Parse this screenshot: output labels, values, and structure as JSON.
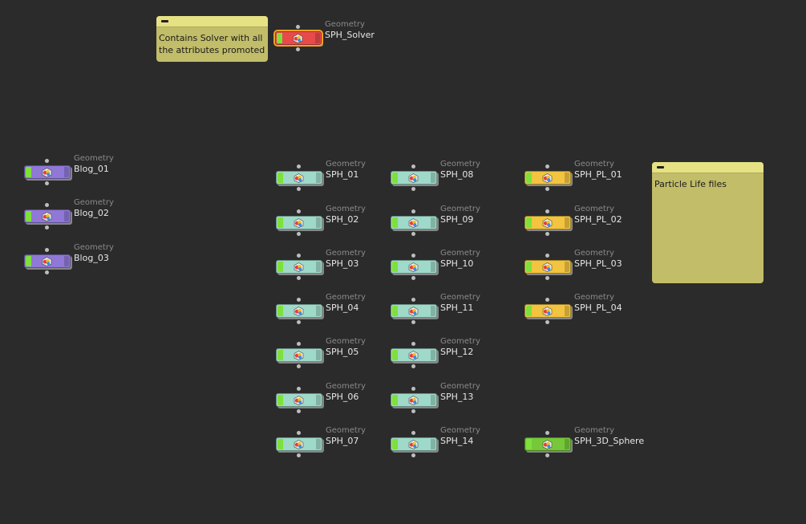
{
  "network": {
    "sticky_notes": [
      {
        "id": "solver-note",
        "text_lines": [
          "Contains Solver with all",
          "the attributes promoted"
        ]
      },
      {
        "id": "particle-life-note",
        "text_lines": [
          "Particle Life files"
        ]
      }
    ],
    "colors": {
      "background": "#2b2b2b",
      "sticky": "#c2bd69",
      "sticky_bar": "#e6e284",
      "purple": "#8f78d6",
      "teal": "#9fd9c9",
      "orange": "#f2c440",
      "red": "#e84a4a",
      "green": "#76c83a",
      "display_flag": "#7ee03a",
      "selection": "#f0a020"
    },
    "nodes": [
      {
        "id": "SPH_Solver",
        "type": "Geometry",
        "name": "SPH_Solver",
        "color": "red",
        "selected": true
      },
      {
        "id": "Blog_01",
        "type": "Geometry",
        "name": "Blog_01",
        "color": "purple"
      },
      {
        "id": "Blog_02",
        "type": "Geometry",
        "name": "Blog_02",
        "color": "purple"
      },
      {
        "id": "Blog_03",
        "type": "Geometry",
        "name": "Blog_03",
        "color": "purple"
      },
      {
        "id": "SPH_01",
        "type": "Geometry",
        "name": "SPH_01",
        "color": "teal"
      },
      {
        "id": "SPH_02",
        "type": "Geometry",
        "name": "SPH_02",
        "color": "teal"
      },
      {
        "id": "SPH_03",
        "type": "Geometry",
        "name": "SPH_03",
        "color": "teal"
      },
      {
        "id": "SPH_04",
        "type": "Geometry",
        "name": "SPH_04",
        "color": "teal"
      },
      {
        "id": "SPH_05",
        "type": "Geometry",
        "name": "SPH_05",
        "color": "teal"
      },
      {
        "id": "SPH_06",
        "type": "Geometry",
        "name": "SPH_06",
        "color": "teal"
      },
      {
        "id": "SPH_07",
        "type": "Geometry",
        "name": "SPH_07",
        "color": "teal"
      },
      {
        "id": "SPH_08",
        "type": "Geometry",
        "name": "SPH_08",
        "color": "teal"
      },
      {
        "id": "SPH_09",
        "type": "Geometry",
        "name": "SPH_09",
        "color": "teal"
      },
      {
        "id": "SPH_10",
        "type": "Geometry",
        "name": "SPH_10",
        "color": "teal"
      },
      {
        "id": "SPH_11",
        "type": "Geometry",
        "name": "SPH_11",
        "color": "teal"
      },
      {
        "id": "SPH_12",
        "type": "Geometry",
        "name": "SPH_12",
        "color": "teal"
      },
      {
        "id": "SPH_13",
        "type": "Geometry",
        "name": "SPH_13",
        "color": "teal"
      },
      {
        "id": "SPH_14",
        "type": "Geometry",
        "name": "SPH_14",
        "color": "teal"
      },
      {
        "id": "SPH_PL_01",
        "type": "Geometry",
        "name": "SPH_PL_01",
        "color": "orange"
      },
      {
        "id": "SPH_PL_02",
        "type": "Geometry",
        "name": "SPH_PL_02",
        "color": "orange"
      },
      {
        "id": "SPH_PL_03",
        "type": "Geometry",
        "name": "SPH_PL_03",
        "color": "orange"
      },
      {
        "id": "SPH_PL_04",
        "type": "Geometry",
        "name": "SPH_PL_04",
        "color": "orange"
      },
      {
        "id": "SPH_3D_Sphere",
        "type": "Geometry",
        "name": "SPH_3D_Sphere",
        "color": "green"
      }
    ]
  }
}
